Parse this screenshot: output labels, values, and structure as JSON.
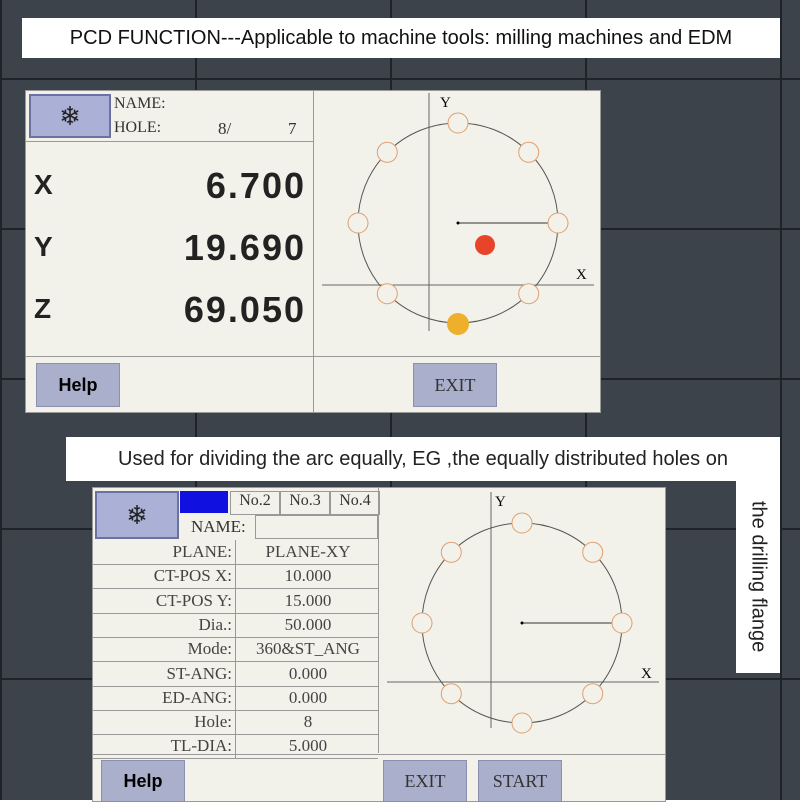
{
  "header": {
    "title": "PCD FUNCTION---Applicable to machine tools: milling machines and EDM"
  },
  "screen1": {
    "name_label": "NAME:",
    "hole_label": "HOLE:",
    "hole_current": "8/",
    "hole_total": "7",
    "axes": [
      {
        "label": "X",
        "value": "6.700"
      },
      {
        "label": "Y",
        "value": "19.690"
      },
      {
        "label": "Z",
        "value": "69.050"
      }
    ],
    "plot": {
      "y_label": "Y",
      "x_label": "X"
    },
    "buttons": [
      "Help",
      "EXIT"
    ]
  },
  "caption": {
    "line": "Used for dividing the arc equally, EG ,the equally distributed holes on",
    "vertical": "the drilling flange"
  },
  "screen2": {
    "tabs": [
      "No.2",
      "No.3",
      "No.4"
    ],
    "name_label": "NAME:",
    "rows": [
      [
        "PLANE:",
        "PLANE-XY"
      ],
      [
        "CT-POS X:",
        "10.000"
      ],
      [
        "CT-POS Y:",
        "15.000"
      ],
      [
        "Dia.:",
        "50.000"
      ],
      [
        "Mode:",
        "360&ST_ANG"
      ],
      [
        "ST-ANG:",
        "0.000"
      ],
      [
        "ED-ANG:",
        "0.000"
      ],
      [
        "Hole:",
        "8"
      ],
      [
        "TL-DIA:",
        "5.000"
      ]
    ],
    "plot": {
      "y_label": "Y",
      "x_label": "X"
    },
    "buttons": [
      "Help",
      "EXIT",
      "START"
    ]
  }
}
